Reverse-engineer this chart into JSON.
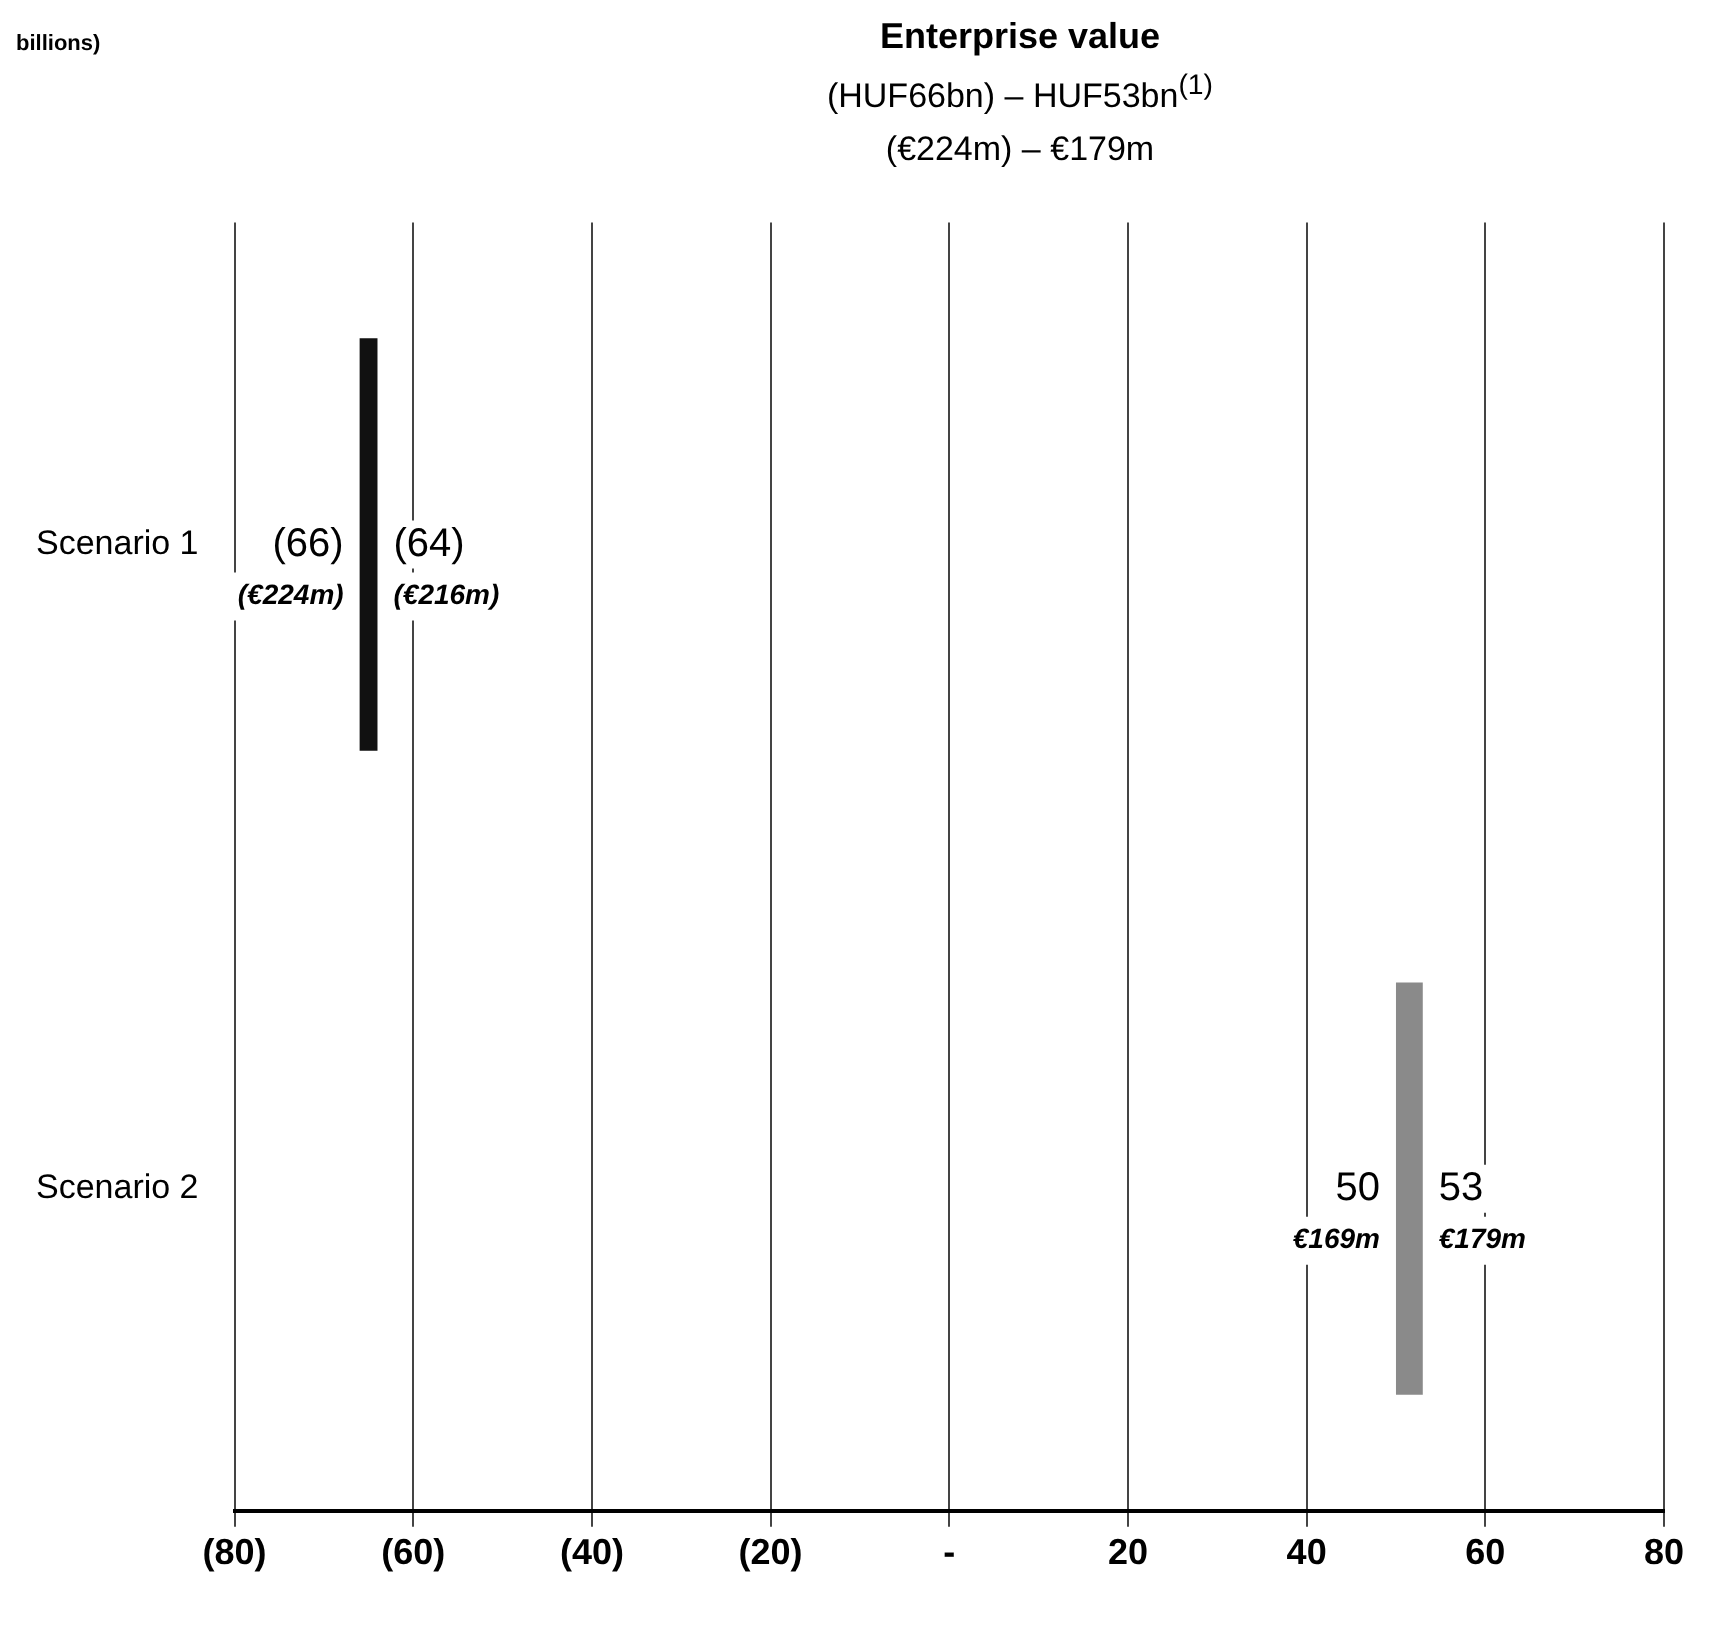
{
  "chart_data": {
    "type": "bar",
    "orientation": "horizontal",
    "title": "Enterprise value",
    "subtitle": "(HUF66bn)  – HUF53bn$^{(1)}$\n(€224m) – €179m",
    "categories": [
      "Scenario 1",
      "Scenario 2"
    ],
    "series": [
      {
        "values": [
          2,
          3
        ],
        "base": [
          -66,
          50
        ],
        "colors": [
          "#111111",
          "#8a8a8a"
        ]
      }
    ],
    "xlim": [
      -80,
      80
    ],
    "xticks": [
      {
        "value": -80,
        "label": "(80)"
      },
      {
        "value": -60,
        "label": "(60)"
      },
      {
        "value": -40,
        "label": "(40)"
      },
      {
        "value": -20,
        "label": "(20)"
      },
      {
        "value": 0,
        "label": "-"
      },
      20,
      40,
      60,
      80
    ],
    "grid": "x",
    "legend": false,
    "annotations": [
      "billions)",
      {
        "text": "(66)",
        "x": -66,
        "y": "Scenario 1"
      },
      {
        "text": "(€224m)",
        "x": -66,
        "y": "Scenario 1"
      },
      {
        "text": "(64)",
        "x": -64,
        "y": "Scenario 1"
      },
      {
        "text": "(€216m)",
        "x": -64,
        "y": "Scenario 1"
      },
      {
        "text": "50",
        "x": 50,
        "y": "Scenario 2"
      },
      {
        "text": "€169m",
        "x": 50,
        "y": "Scenario 2"
      },
      {
        "text": "53",
        "x": 53,
        "y": "Scenario 2"
      },
      {
        "text": "€179m",
        "x": 53,
        "y": "Scenario 2"
      }
    ]
  }
}
